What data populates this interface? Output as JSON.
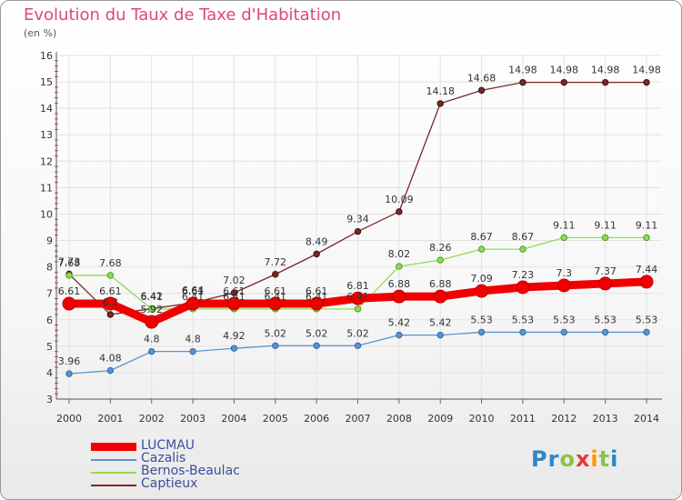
{
  "title": "Evolution du Taux de Taxe d'Habitation",
  "unit_label": "(en %)",
  "logo": [
    "P",
    "r",
    "o",
    "x",
    "i",
    "t",
    "i"
  ],
  "logo_colors": [
    "#2b87c9",
    "#2b87c9",
    "#8bc34a",
    "#e53935",
    "#ff9800",
    "#8bc34a",
    "#2b87c9"
  ],
  "chart_data": {
    "type": "line",
    "title": "Evolution du Taux de Taxe d'Habitation",
    "ylabel": "(en %)",
    "xlabel": "",
    "x": [
      "2000",
      "2001",
      "2002",
      "2003",
      "2004",
      "2005",
      "2006",
      "2007",
      "2008",
      "2009",
      "2010",
      "2011",
      "2012",
      "2013",
      "2014"
    ],
    "ylim": [
      3,
      16
    ],
    "yticks": [
      "3",
      "4",
      "5",
      "6",
      "7",
      "8",
      "9",
      "10",
      "11",
      "12",
      "13",
      "14",
      "15",
      "16"
    ],
    "grid": true,
    "legend_position": "bottom-left",
    "series": [
      {
        "name": "Captieux",
        "color": "#7a2828",
        "values": [
          7.73,
          6.2,
          6.42,
          6.64,
          7.02,
          7.72,
          8.49,
          9.34,
          10.09,
          14.18,
          14.68,
          14.98,
          14.98,
          14.98,
          14.98
        ],
        "labels": [
          "7.73",
          "6.2",
          "6.42",
          "6.64",
          "7.02",
          "7.72",
          "8.49",
          "9.34",
          "10.09",
          "14.18",
          "14.68",
          "14.98",
          "14.98",
          "14.98",
          "14.98"
        ]
      },
      {
        "name": "Bernos-Beaulac",
        "color": "#90dd55",
        "values": [
          7.68,
          7.68,
          6.41,
          6.41,
          6.41,
          6.41,
          6.41,
          6.41,
          8.02,
          8.26,
          8.67,
          8.67,
          9.11,
          9.11,
          9.11
        ],
        "labels": [
          "7.68",
          "7.68",
          "6.41",
          "6.41",
          "6.41",
          "6.41",
          "6.41",
          "6.41",
          "8.02",
          "8.26",
          "8.67",
          "8.67",
          "9.11",
          "9.11",
          "9.11"
        ]
      },
      {
        "name": "Cazalis",
        "color": "#5b93cf",
        "values": [
          3.96,
          4.08,
          4.8,
          4.8,
          4.92,
          5.02,
          5.02,
          5.02,
          5.42,
          5.42,
          5.53,
          5.53,
          5.53,
          5.53,
          5.53
        ],
        "labels": [
          "3.96",
          "4.08",
          "4.8",
          "4.8",
          "4.92",
          "5.02",
          "5.02",
          "5.02",
          "5.42",
          "5.42",
          "5.53",
          "5.53",
          "5.53",
          "5.53",
          "5.53"
        ]
      },
      {
        "name": "LUCMAU",
        "color": "#f00000",
        "values": [
          6.61,
          6.61,
          5.92,
          6.61,
          6.61,
          6.61,
          6.61,
          6.81,
          6.88,
          6.88,
          7.09,
          7.23,
          7.3,
          7.37,
          7.44
        ],
        "labels": [
          "6.61",
          "6.61",
          "5.92",
          "6.61",
          "6.61",
          "6.61",
          "6.61",
          "6.81",
          "6.88",
          "6.88",
          "7.09",
          "7.23",
          "7.3",
          "7.37",
          "7.44"
        ]
      }
    ],
    "legend": [
      "LUCMAU",
      "Cazalis",
      "Bernos-Beaulac",
      "Captieux"
    ]
  }
}
